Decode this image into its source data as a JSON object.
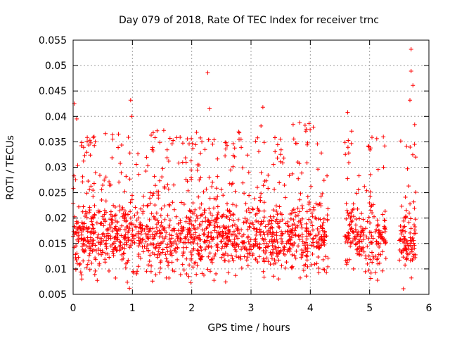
{
  "chart_data": {
    "type": "scatter",
    "title": "Day 079 of 2018, Rate Of TEC Index for receiver trnc",
    "xlabel": "GPS time / hours",
    "ylabel": "ROTI / TECUs",
    "xlim": [
      0,
      6
    ],
    "ylim": [
      0.005,
      0.055
    ],
    "xticks": [
      0,
      1,
      2,
      3,
      4,
      5,
      6
    ],
    "xtick_labels": [
      "0",
      "1",
      "2",
      "3",
      "4",
      "5",
      "6"
    ],
    "yticks": [
      0.005,
      0.01,
      0.015,
      0.02,
      0.025,
      0.03,
      0.035,
      0.04,
      0.045,
      0.05,
      0.055
    ],
    "ytick_labels": [
      "0.005",
      "0.01",
      "0.015",
      "0.02",
      "0.025",
      "0.03",
      "0.035",
      "0.04",
      "0.045",
      "0.05",
      "0.055"
    ],
    "grid": true,
    "marker": "+",
    "marker_color": "#ff0000",
    "series": [
      {
        "name": "ROTI",
        "data_gaps_hours": [
          [
            4.3,
            4.58
          ],
          [
            5.28,
            5.5
          ]
        ],
        "notable_points": [
          {
            "x": 0.02,
            "y": 0.0425
          },
          {
            "x": 0.06,
            "y": 0.0395
          },
          {
            "x": 0.97,
            "y": 0.0432
          },
          {
            "x": 0.99,
            "y": 0.04
          },
          {
            "x": 2.27,
            "y": 0.0486
          },
          {
            "x": 2.3,
            "y": 0.0415
          },
          {
            "x": 3.2,
            "y": 0.0418
          },
          {
            "x": 3.93,
            "y": 0.0375
          },
          {
            "x": 4.63,
            "y": 0.0408
          },
          {
            "x": 5.7,
            "y": 0.0532
          },
          {
            "x": 5.7,
            "y": 0.0489
          },
          {
            "x": 5.73,
            "y": 0.0461
          },
          {
            "x": 5.68,
            "y": 0.0432
          },
          {
            "x": 5.76,
            "y": 0.0384
          },
          {
            "x": 0.95,
            "y": 0.0062
          },
          {
            "x": 5.57,
            "y": 0.0061
          }
        ]
      }
    ]
  }
}
